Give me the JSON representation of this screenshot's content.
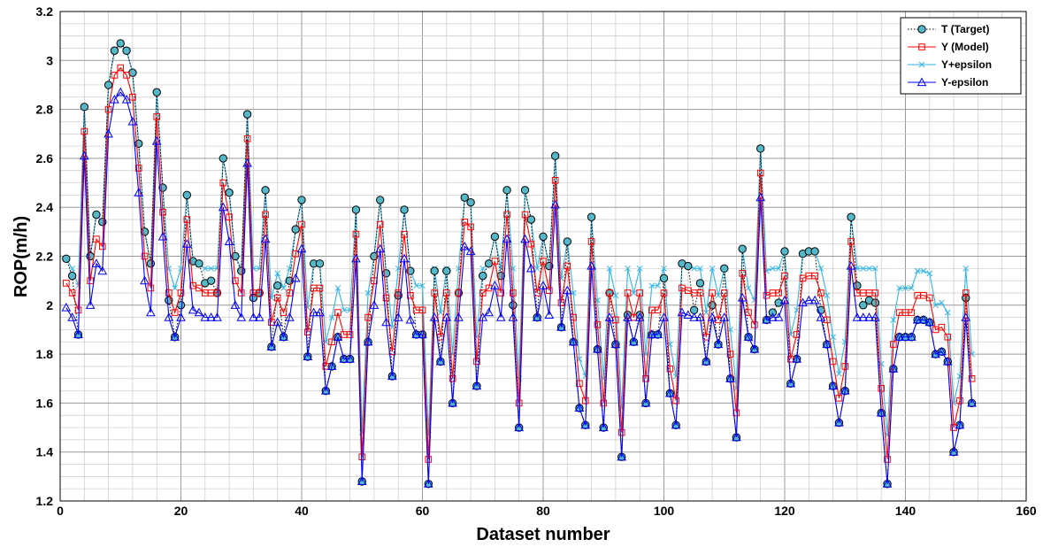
{
  "chart_data": {
    "type": "line",
    "title": "",
    "xlabel": "Dataset number",
    "ylabel": "ROP(m/h)",
    "xlim": [
      0,
      160
    ],
    "ylim": [
      1.2,
      3.2
    ],
    "x_ticks": [
      0,
      20,
      40,
      60,
      80,
      100,
      120,
      140,
      160
    ],
    "y_ticks": [
      1.2,
      1.4,
      1.6,
      1.8,
      2,
      2.2,
      2.4,
      2.6,
      2.8,
      3,
      3.2
    ],
    "x_tick_labels": [
      "0",
      "20",
      "40",
      "60",
      "80",
      "100",
      "120",
      "140",
      "160"
    ],
    "y_tick_labels": [
      "1.2",
      "1.4",
      "1.6",
      "1.8",
      "2",
      "2.2",
      "2.4",
      "2.6",
      "2.8",
      "3",
      "3.2"
    ],
    "grid": "on (major and minor)",
    "legend_position": "top-right",
    "epsilon": 0.1,
    "x": [
      1,
      2,
      3,
      4,
      5,
      6,
      7,
      8,
      9,
      10,
      11,
      12,
      13,
      14,
      15,
      16,
      17,
      18,
      19,
      20,
      21,
      22,
      23,
      24,
      25,
      26,
      27,
      28,
      29,
      30,
      31,
      32,
      33,
      34,
      35,
      36,
      37,
      38,
      39,
      40,
      41,
      42,
      43,
      44,
      45,
      46,
      47,
      48,
      49,
      50,
      51,
      52,
      53,
      54,
      55,
      56,
      57,
      58,
      59,
      60,
      61,
      62,
      63,
      64,
      65,
      66,
      67,
      68,
      69,
      70,
      71,
      72,
      73,
      74,
      75,
      76,
      77,
      78,
      79,
      80,
      81,
      82,
      83,
      84,
      85,
      86,
      87,
      88,
      89,
      90,
      91,
      92,
      93,
      94,
      95,
      96,
      97,
      98,
      99,
      100,
      101,
      102,
      103,
      104,
      105,
      106,
      107,
      108,
      109,
      110,
      111,
      112,
      113,
      114,
      115,
      116,
      117,
      118,
      119,
      120,
      121,
      122,
      123,
      124,
      125,
      126,
      127,
      128,
      129,
      130,
      131,
      132,
      133,
      134,
      135,
      136,
      137,
      138,
      139,
      140,
      141,
      142,
      143,
      144,
      145,
      146,
      147,
      148,
      149,
      150,
      151
    ],
    "series": [
      {
        "name": "T (Target)",
        "color": "#000000",
        "marker": "circle",
        "line": "dotted",
        "values": [
          2.19,
          2.12,
          1.88,
          2.81,
          2.2,
          2.37,
          2.34,
          2.9,
          3.04,
          3.07,
          3.04,
          2.95,
          2.66,
          2.3,
          2.17,
          2.87,
          2.48,
          2.02,
          1.87,
          2.0,
          2.45,
          2.18,
          2.17,
          2.09,
          2.1,
          2.05,
          2.6,
          2.46,
          2.2,
          2.14,
          2.78,
          2.03,
          2.05,
          2.47,
          1.83,
          2.08,
          1.87,
          2.1,
          2.31,
          2.43,
          1.79,
          2.17,
          2.17,
          1.65,
          1.75,
          1.87,
          1.78,
          1.78,
          2.39,
          1.28,
          1.85,
          2.2,
          2.43,
          2.13,
          1.71,
          2.04,
          2.39,
          2.14,
          1.88,
          1.88,
          1.27,
          2.14,
          1.77,
          2.14,
          1.6,
          2.05,
          2.44,
          2.42,
          1.67,
          2.12,
          2.17,
          2.28,
          2.12,
          2.47,
          2.0,
          1.5,
          2.47,
          2.35,
          1.95,
          2.28,
          2.16,
          2.61,
          1.91,
          2.26,
          1.85,
          1.58,
          1.51,
          2.36,
          1.82,
          1.5,
          2.05,
          1.84,
          1.38,
          1.96,
          1.85,
          1.96,
          1.6,
          1.88,
          1.88,
          2.11,
          1.64,
          1.51,
          2.17,
          2.16,
          1.98,
          2.09,
          1.77,
          2.0,
          1.84,
          2.15,
          1.7,
          1.46,
          2.23,
          1.87,
          1.82,
          2.64,
          1.94,
          1.97,
          2.01,
          2.22,
          1.68,
          1.78,
          2.21,
          2.22,
          2.22,
          1.98,
          1.84,
          1.67,
          1.52,
          1.65,
          2.36,
          2.08,
          2.0,
          2.02,
          2.01,
          1.56,
          1.27,
          1.74,
          1.87,
          1.87,
          1.87,
          1.94,
          1.94,
          1.93,
          1.8,
          1.81,
          1.77,
          1.4,
          1.51,
          2.03,
          1.6
        ]
      },
      {
        "name": "Y (Model)",
        "color": "#ff0000",
        "marker": "square",
        "line": "solid",
        "values": [
          2.09,
          2.05,
          1.98,
          2.71,
          2.1,
          2.27,
          2.24,
          2.8,
          2.94,
          2.97,
          2.94,
          2.85,
          2.56,
          2.2,
          2.07,
          2.77,
          2.38,
          2.05,
          1.97,
          2.05,
          2.35,
          2.08,
          2.07,
          2.05,
          2.05,
          2.05,
          2.5,
          2.36,
          2.1,
          2.05,
          2.68,
          2.05,
          2.05,
          2.37,
          1.93,
          2.03,
          1.97,
          2.05,
          2.21,
          2.33,
          1.89,
          2.07,
          2.07,
          1.75,
          1.85,
          1.97,
          1.88,
          1.88,
          2.29,
          1.38,
          1.95,
          2.1,
          2.33,
          2.03,
          1.81,
          2.05,
          2.29,
          2.04,
          1.98,
          1.98,
          1.37,
          2.05,
          1.87,
          2.05,
          1.7,
          2.05,
          2.34,
          2.32,
          1.77,
          2.05,
          2.07,
          2.18,
          2.05,
          2.37,
          2.05,
          1.6,
          2.37,
          2.25,
          2.05,
          2.18,
          2.06,
          2.51,
          2.01,
          2.16,
          1.95,
          1.68,
          1.61,
          2.26,
          1.92,
          1.6,
          2.05,
          1.94,
          1.48,
          2.05,
          1.95,
          2.05,
          1.7,
          1.98,
          1.98,
          2.05,
          1.74,
          1.61,
          2.07,
          2.06,
          2.05,
          2.05,
          1.87,
          2.05,
          1.94,
          2.05,
          1.8,
          1.56,
          2.13,
          1.97,
          1.92,
          2.54,
          2.04,
          2.05,
          2.05,
          2.12,
          1.78,
          1.88,
          2.11,
          2.12,
          2.12,
          2.05,
          1.94,
          1.77,
          1.62,
          1.75,
          2.26,
          2.05,
          2.05,
          2.05,
          2.05,
          1.66,
          1.37,
          1.84,
          1.97,
          1.97,
          1.97,
          2.04,
          2.04,
          2.03,
          1.9,
          1.91,
          1.87,
          1.5,
          1.61,
          2.05,
          1.7
        ]
      },
      {
        "name": "Y+epsilon",
        "color": "#33b5e5",
        "marker": "x",
        "line": "solid",
        "values": [
          2.19,
          2.15,
          2.08,
          2.81,
          2.2,
          2.37,
          2.34,
          2.9,
          3.04,
          3.07,
          3.04,
          2.95,
          2.66,
          2.3,
          2.17,
          2.87,
          2.48,
          2.15,
          2.07,
          2.15,
          2.45,
          2.18,
          2.17,
          2.15,
          2.15,
          2.15,
          2.6,
          2.46,
          2.2,
          2.15,
          2.78,
          2.15,
          2.15,
          2.47,
          2.03,
          2.13,
          2.07,
          2.15,
          2.31,
          2.43,
          1.99,
          2.17,
          2.17,
          1.85,
          1.95,
          2.07,
          1.98,
          1.98,
          2.39,
          1.48,
          2.05,
          2.2,
          2.43,
          2.13,
          1.91,
          2.15,
          2.39,
          2.14,
          2.08,
          2.08,
          1.47,
          2.15,
          1.97,
          2.15,
          1.8,
          2.15,
          2.44,
          2.42,
          1.87,
          2.15,
          2.17,
          2.28,
          2.15,
          2.47,
          2.15,
          1.7,
          2.47,
          2.35,
          2.15,
          2.28,
          2.16,
          2.61,
          2.11,
          2.26,
          2.05,
          1.78,
          1.71,
          2.36,
          2.02,
          1.7,
          2.15,
          2.04,
          1.58,
          2.15,
          2.05,
          2.15,
          1.8,
          2.08,
          2.08,
          2.15,
          1.84,
          1.71,
          2.17,
          2.16,
          2.15,
          2.15,
          1.97,
          2.15,
          2.04,
          2.15,
          1.9,
          1.66,
          2.23,
          2.07,
          2.02,
          2.64,
          2.14,
          2.15,
          2.15,
          2.22,
          1.88,
          1.98,
          2.21,
          2.22,
          2.22,
          2.15,
          2.04,
          1.87,
          1.72,
          1.85,
          2.36,
          2.15,
          2.15,
          2.15,
          2.15,
          1.76,
          1.47,
          1.94,
          2.07,
          2.07,
          2.07,
          2.14,
          2.14,
          2.13,
          2.0,
          2.01,
          1.97,
          1.6,
          1.71,
          2.15,
          1.8
        ]
      },
      {
        "name": "Y-epsilon",
        "color": "#0000ff",
        "marker": "triangle",
        "line": "solid",
        "values": [
          1.99,
          1.95,
          1.88,
          2.61,
          2.0,
          2.17,
          2.14,
          2.7,
          2.84,
          2.87,
          2.84,
          2.75,
          2.46,
          2.1,
          1.97,
          2.67,
          2.28,
          1.95,
          1.87,
          1.95,
          2.25,
          1.98,
          1.97,
          1.95,
          1.95,
          1.95,
          2.4,
          2.26,
          2.0,
          1.95,
          2.58,
          1.95,
          1.95,
          2.27,
          1.83,
          1.93,
          1.87,
          1.95,
          2.11,
          2.23,
          1.79,
          1.97,
          1.97,
          1.65,
          1.75,
          1.87,
          1.78,
          1.78,
          2.19,
          1.28,
          1.85,
          2.0,
          2.23,
          1.93,
          1.71,
          1.95,
          2.19,
          1.94,
          1.88,
          1.88,
          1.27,
          1.95,
          1.77,
          1.95,
          1.6,
          1.95,
          2.24,
          2.22,
          1.67,
          1.95,
          1.97,
          2.08,
          1.95,
          2.27,
          1.95,
          1.5,
          2.27,
          2.15,
          1.95,
          2.08,
          1.96,
          2.41,
          1.91,
          2.06,
          1.85,
          1.58,
          1.51,
          2.16,
          1.82,
          1.5,
          1.95,
          1.84,
          1.38,
          1.95,
          1.85,
          1.95,
          1.6,
          1.88,
          1.88,
          1.95,
          1.64,
          1.51,
          1.97,
          1.96,
          1.95,
          1.95,
          1.77,
          1.95,
          1.84,
          1.95,
          1.7,
          1.46,
          2.03,
          1.87,
          1.82,
          2.44,
          1.94,
          1.95,
          1.95,
          2.02,
          1.68,
          1.78,
          2.01,
          2.02,
          2.02,
          1.95,
          1.84,
          1.67,
          1.52,
          1.65,
          2.16,
          1.95,
          1.95,
          1.95,
          1.95,
          1.56,
          1.27,
          1.74,
          1.87,
          1.87,
          1.87,
          1.94,
          1.94,
          1.93,
          1.8,
          1.81,
          1.77,
          1.4,
          1.51,
          1.95,
          1.6
        ]
      }
    ]
  }
}
